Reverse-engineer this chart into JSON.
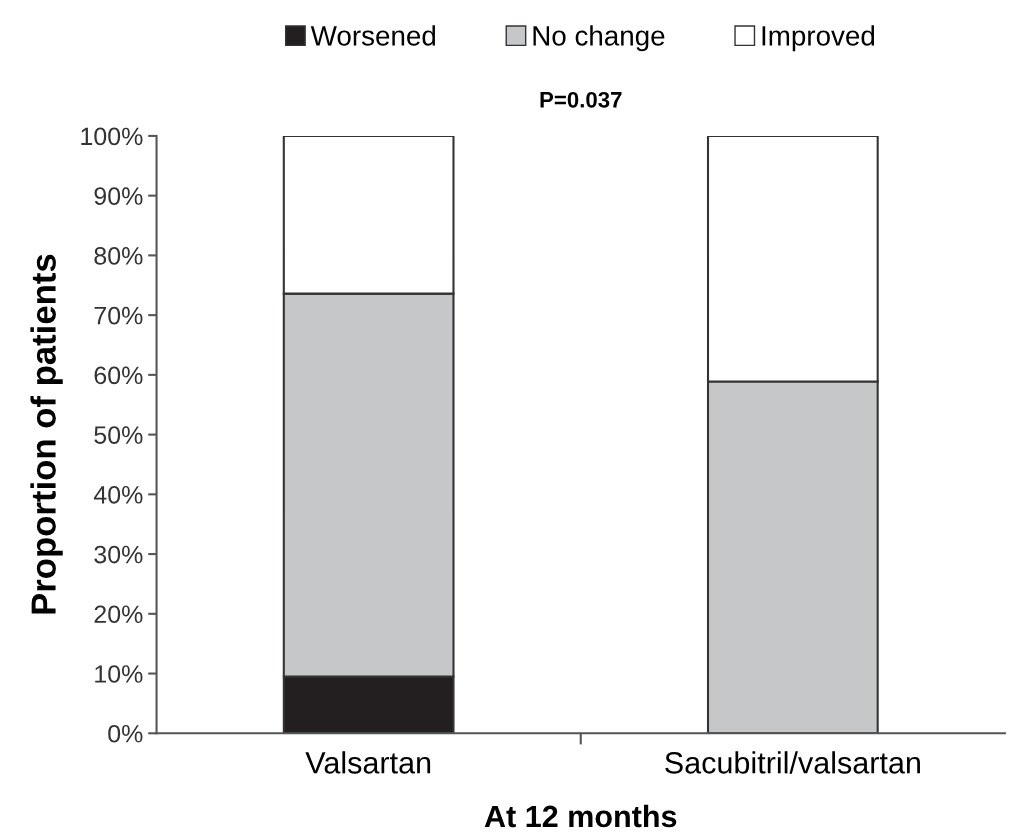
{
  "chart_data": {
    "type": "bar",
    "stacked": true,
    "categories": [
      "Valsartan",
      "Sacubitril/valsartan"
    ],
    "series": [
      {
        "name": "Worsened",
        "color": "#231f20",
        "values": [
          9.5,
          0
        ]
      },
      {
        "name": "No change",
        "color": "#c6c7c9",
        "values": [
          64.1,
          58.9
        ]
      },
      {
        "name": "Improved",
        "color": "#ffffff",
        "values": [
          26.4,
          41.1
        ]
      }
    ],
    "xlabel": "At 12 months",
    "ylabel": "Proportion of patients",
    "annotations": [
      "P=0.037"
    ],
    "ylim": [
      0,
      100
    ],
    "yticks": [
      {
        "value": 0,
        "label": "0%"
      },
      {
        "value": 10,
        "label": "10%"
      },
      {
        "value": 20,
        "label": "20%"
      },
      {
        "value": 30,
        "label": "30%"
      },
      {
        "value": 40,
        "label": "40%"
      },
      {
        "value": 50,
        "label": "50%"
      },
      {
        "value": 60,
        "label": "60%"
      },
      {
        "value": 70,
        "label": "70%"
      },
      {
        "value": 80,
        "label": "80%"
      },
      {
        "value": 90,
        "label": "90%"
      },
      {
        "value": 100,
        "label": "100%"
      }
    ],
    "grid": false,
    "legend": "top"
  }
}
